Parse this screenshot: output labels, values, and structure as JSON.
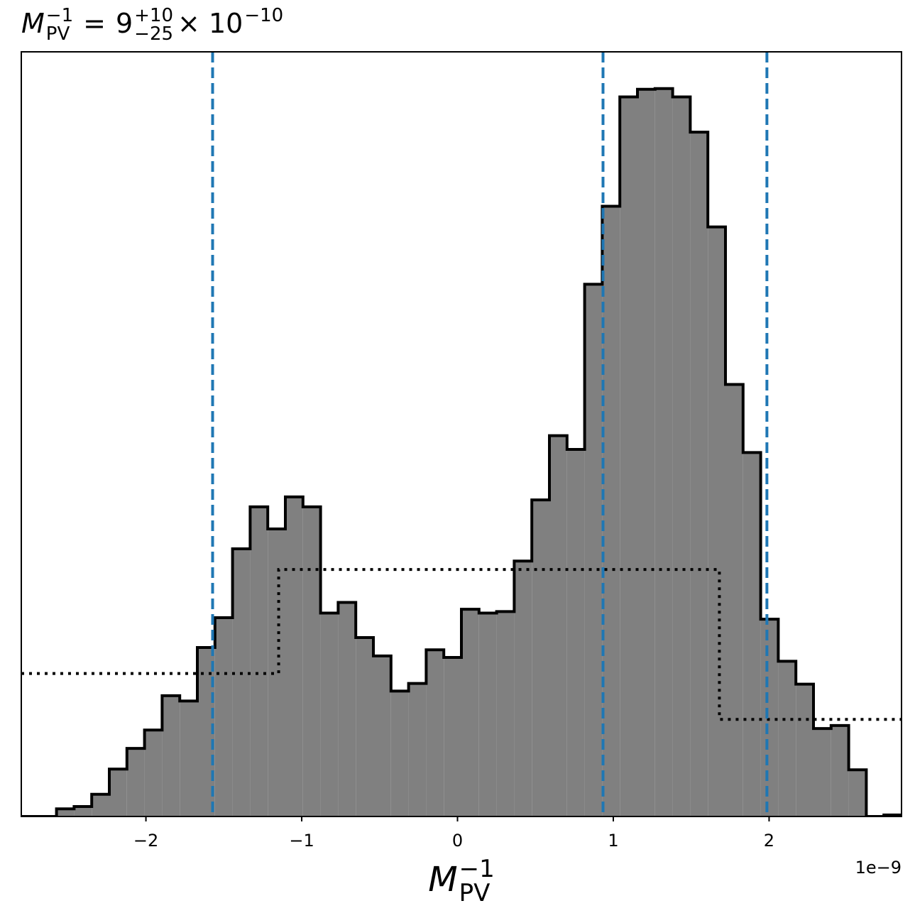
{
  "chart_data": {
    "type": "histogram",
    "title": {
      "symbol": "M",
      "sub": "PV",
      "sup": "−1",
      "equals": "=",
      "mantissa": "9",
      "plus": "+10",
      "minus": "−25",
      "times": "× 10",
      "exponent": "−10"
    },
    "xlabel": {
      "symbol": "M",
      "sub": "PV",
      "sup": "−1"
    },
    "x_offset_text": "1e−9",
    "xlim": [
      -2.8,
      2.85
    ],
    "ylim": [
      0,
      100
    ],
    "xticks": [
      {
        "value": -2,
        "label": "−2"
      },
      {
        "value": -1,
        "label": "−1"
      },
      0,
      1,
      2
    ],
    "grid": false,
    "color": "#808080",
    "edge_color": "#000000",
    "bins": [
      -2.8,
      -2.687,
      -2.574,
      -2.461,
      -2.348,
      -2.235,
      -2.122,
      -2.009,
      -1.896,
      -1.783,
      -1.67,
      -1.557,
      -1.444,
      -1.331,
      -1.218,
      -1.105,
      -0.992,
      -0.879,
      -0.766,
      -0.653,
      -0.54,
      -0.427,
      -0.314,
      -0.201,
      -0.088,
      0.025,
      0.138,
      0.251,
      0.364,
      0.477,
      0.59,
      0.703,
      0.816,
      0.929,
      1.042,
      1.155,
      1.268,
      1.381,
      1.494,
      1.607,
      1.72,
      1.833,
      1.946,
      2.059,
      2.172,
      2.285,
      2.398,
      2.511,
      2.624,
      2.737,
      2.85
    ],
    "values": [
      0,
      0,
      1.0,
      1.3,
      2.9,
      6.2,
      8.9,
      11.3,
      15.8,
      15.1,
      22.1,
      26.0,
      35.0,
      40.5,
      37.6,
      41.8,
      40.5,
      26.6,
      28.0,
      23.4,
      21.0,
      16.4,
      17.4,
      21.8,
      20.8,
      27.1,
      26.6,
      26.8,
      33.4,
      41.4,
      49.8,
      48.0,
      69.6,
      79.8,
      94.1,
      95.1,
      95.2,
      94.1,
      89.5,
      77.1,
      56.5,
      47.6,
      25.8,
      20.3,
      17.3,
      11.5,
      11.9,
      6.1,
      0,
      0.2
    ],
    "prior": {
      "bins": [
        -2.8,
        -1.148,
        1.681,
        2.85
      ],
      "values": [
        18.7,
        32.3,
        12.7
      ],
      "color": "#000000"
    },
    "vlines": {
      "x": [
        -1.572,
        0.934,
        1.986
      ],
      "color": "#1f77b4"
    }
  }
}
